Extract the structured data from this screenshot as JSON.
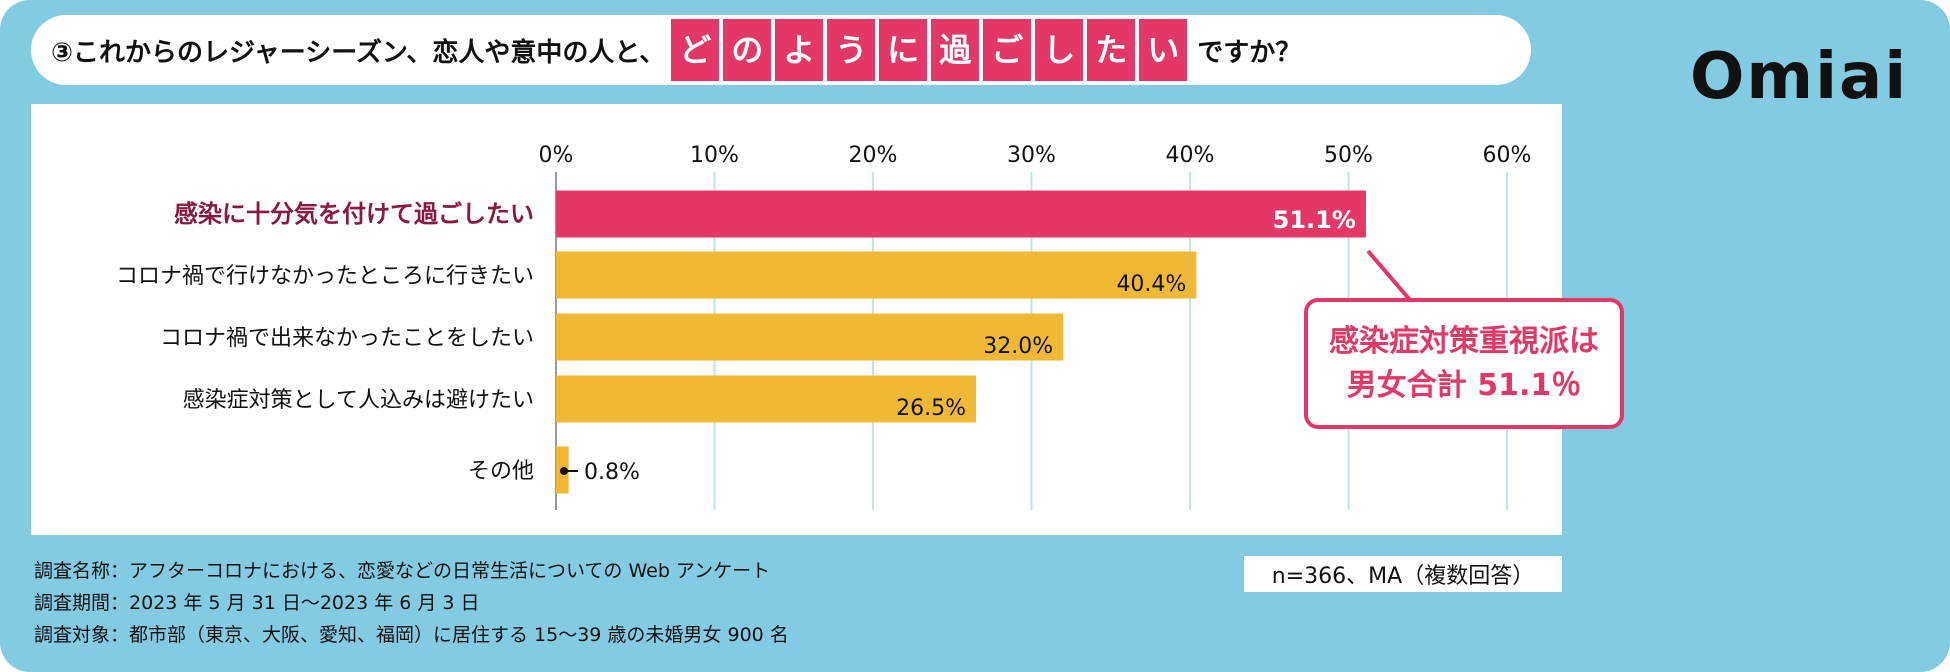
{
  "title": {
    "prefix": "③これからのレジャーシーズン、恋人や意中の人と、",
    "highlight": [
      "ど",
      "の",
      "よ",
      "う",
      "に",
      "過",
      "ご",
      "し",
      "た",
      "い"
    ],
    "suffix": "ですか？"
  },
  "logo": "Omiai",
  "chart_data": {
    "type": "bar",
    "orientation": "horizontal",
    "categories": [
      "感染に十分気を付けて過ごしたい",
      "コロナ禍で行けなかったところに行きたい",
      "コロナ禍で出来なかったことをしたい",
      "感染症対策として人込みは避けたい",
      "その他"
    ],
    "values": [
      51.1,
      40.4,
      32.0,
      26.5,
      0.8
    ],
    "value_labels": [
      "51.1%",
      "40.4%",
      "32.0%",
      "26.5%",
      "0.8%"
    ],
    "xlim": [
      0,
      60
    ],
    "ticks": [
      "0%",
      "10%",
      "20%",
      "30%",
      "40%",
      "50%",
      "60%"
    ],
    "grid": true,
    "colors": {
      "highlight": "#e33866",
      "default": "#f0b935",
      "grid": "#bfe3ef",
      "highlight_label": "#8b1a3a"
    }
  },
  "callout": {
    "line1": "感染症対策重視派は",
    "line2": "男女合計 51.1％"
  },
  "sample_note": "n=366、MA（複数回答）",
  "footnotes": [
    "調査名称：アフターコロナにおける、恋愛などの日常生活についての Web アンケート",
    "調査期間：2023 年 5 月 31 日～2023 年 6 月 3 日",
    "調査対象：都市部（東京、大阪、愛知、福岡）に居住する 15～39 歳の未婚男女 900 名"
  ]
}
